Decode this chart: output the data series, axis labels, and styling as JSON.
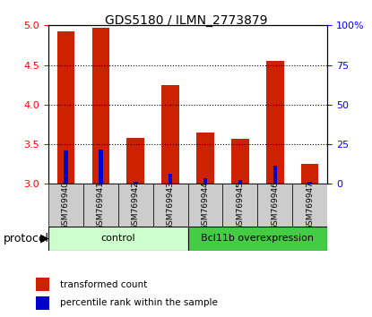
{
  "title": "GDS5180 / ILMN_2773879",
  "samples": [
    "GSM769940",
    "GSM769941",
    "GSM769942",
    "GSM769943",
    "GSM769944",
    "GSM769945",
    "GSM769946",
    "GSM769947"
  ],
  "red_values": [
    4.93,
    4.97,
    3.58,
    4.25,
    3.65,
    3.57,
    4.55,
    3.25
  ],
  "blue_values": [
    3.42,
    3.43,
    3.03,
    3.13,
    3.07,
    3.05,
    3.23,
    3.03
  ],
  "ylim": [
    3.0,
    5.0
  ],
  "ylim_right": [
    0,
    100
  ],
  "yticks_left": [
    3.0,
    3.5,
    4.0,
    4.5,
    5.0
  ],
  "yticks_right": [
    0,
    25,
    50,
    75,
    100
  ],
  "ytick_labels_right": [
    "0",
    "25",
    "50",
    "75",
    "100%"
  ],
  "control_samples": 4,
  "control_label": "control",
  "overexpr_label": "Bcl11b overexpression",
  "protocol_label": "protocol",
  "legend_red": "transformed count",
  "legend_blue": "percentile rank within the sample",
  "bar_color": "#cc2200",
  "blue_color": "#0000cc",
  "control_bg": "#ccffcc",
  "overexpr_bg": "#44cc44",
  "bar_width": 0.5,
  "sample_bg": "#cccccc"
}
